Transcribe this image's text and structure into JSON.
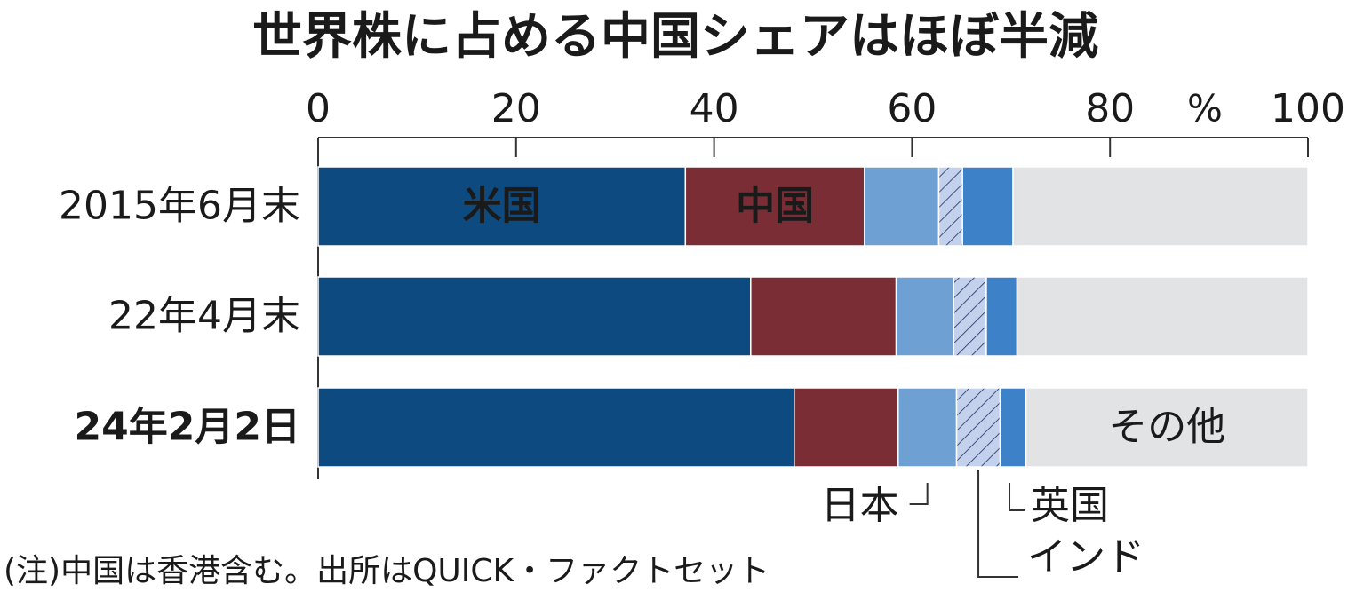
{
  "chart_data": {
    "type": "stacked-bar-horizontal",
    "title": "世界株に占める中国シェアはほぼ半減",
    "x_unit": "%",
    "categories": [
      "2015年6月末",
      "22年4月末",
      "24年2月2日"
    ],
    "series": [
      {
        "name": "米国",
        "color": "#0d4a80",
        "values": [
          37.1,
          43.7,
          48.1
        ]
      },
      {
        "name": "中国",
        "color": "#7a2d35",
        "values": [
          18.1,
          14.7,
          10.5
        ]
      },
      {
        "name": "日本",
        "color": "#6fa0d3",
        "values": [
          7.5,
          5.8,
          5.9
        ]
      },
      {
        "name": "インド",
        "color": "#c3d1ec",
        "hatch": true,
        "values": [
          2.4,
          3.3,
          4.4
        ]
      },
      {
        "name": "英国",
        "color": "#3d82c8",
        "values": [
          5.1,
          3.1,
          2.6
        ]
      },
      {
        "name": "その他",
        "color": "#e2e3e5",
        "values": [
          29.8,
          29.4,
          28.5
        ]
      }
    ],
    "xlim": [
      0,
      100
    ],
    "xticks": [
      0,
      20,
      40,
      60,
      80,
      100
    ],
    "note": "(注)中国は香港含む。出所はQUICK・ファクトセット"
  }
}
